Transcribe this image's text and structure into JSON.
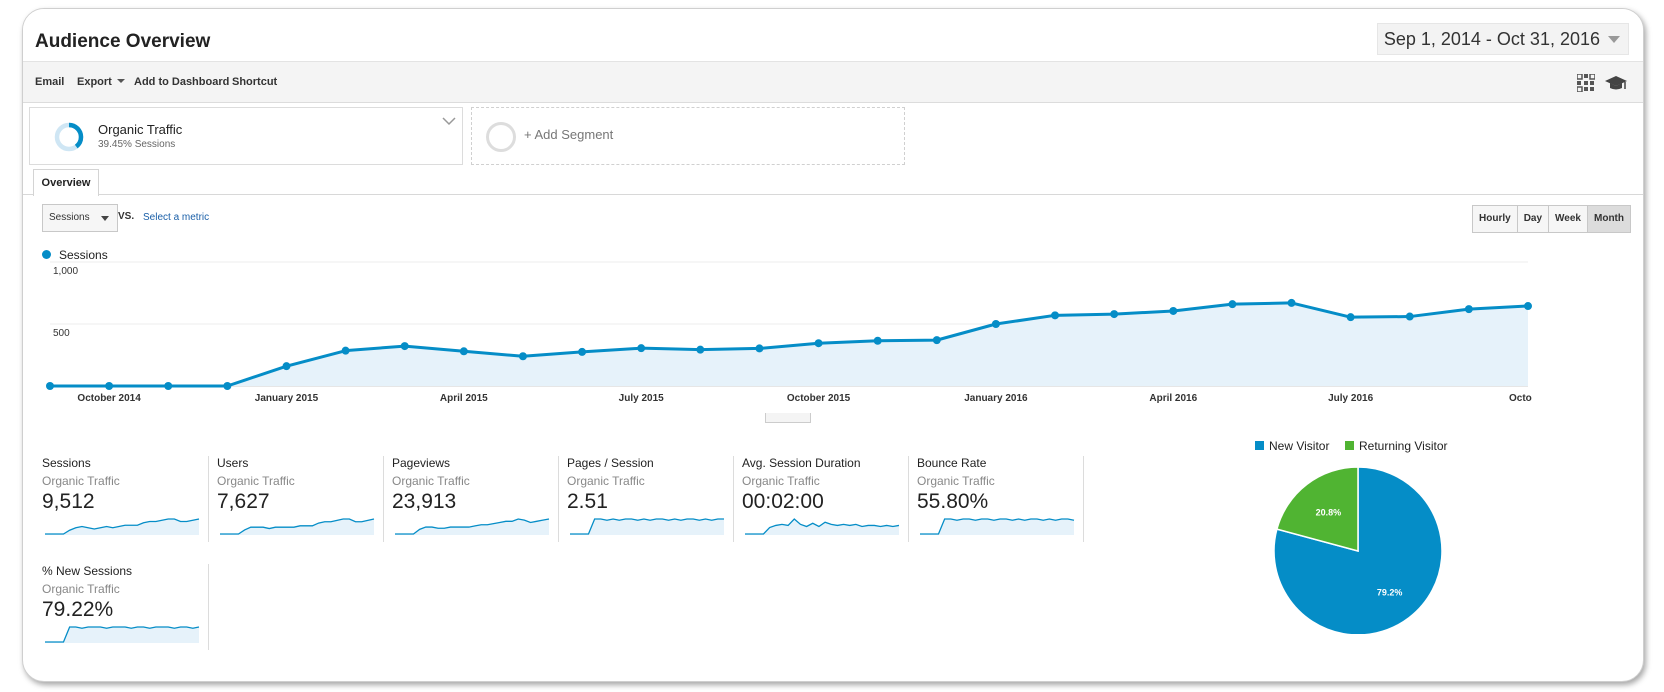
{
  "header": {
    "title": "Audience Overview",
    "date_range": "Sep 1, 2014 - Oct 31, 2016"
  },
  "toolbar": {
    "email": "Email",
    "export": "Export",
    "add_to_dashboard": "Add to Dashboard",
    "shortcut": "Shortcut"
  },
  "segments": {
    "active": {
      "name": "Organic Traffic",
      "detail": "39.45% Sessions"
    },
    "add_label": "+ Add Segment"
  },
  "tabs": {
    "overview": "Overview"
  },
  "controls": {
    "metric": "Sessions",
    "vs": "VS.",
    "select_metric": "Select a metric",
    "periods": [
      "Hourly",
      "Day",
      "Week",
      "Month"
    ],
    "active_period": "Month"
  },
  "colors": {
    "primary": "#058dc7",
    "secondary": "#50b432",
    "fill": "#e6f2fa"
  },
  "chart_data": [
    {
      "type": "area",
      "series": [
        {
          "name": "Sessions",
          "values": [
            0,
            0,
            0,
            0,
            160,
            285,
            322,
            280,
            240,
            275,
            305,
            293,
            303,
            345,
            365,
            370,
            500,
            570,
            580,
            605,
            660,
            670,
            555,
            560,
            620,
            645
          ]
        }
      ],
      "ylim": [
        0,
        1000
      ],
      "y_ticks": [
        "1,000",
        "500"
      ],
      "x_tick_labels": [
        "October 2014",
        "January 2015",
        "April 2015",
        "July 2015",
        "October 2015",
        "January 2016",
        "April 2016",
        "July 2016",
        "Octo"
      ],
      "grid": true
    },
    {
      "type": "pie",
      "labels": [
        "New Visitor",
        "Returning Visitor"
      ],
      "values": [
        79.2,
        20.8
      ],
      "value_labels": [
        "79.2%",
        "20.8%"
      ],
      "legend": "top"
    }
  ],
  "metrics": [
    {
      "name": "Sessions",
      "segment": "Organic Traffic",
      "value": "9,512",
      "spark": [
        0,
        0,
        0,
        0,
        3,
        5,
        6,
        5,
        4,
        5,
        6,
        5,
        6,
        7,
        7,
        7,
        9,
        10,
        10,
        11,
        12,
        12,
        10,
        10,
        11,
        12
      ]
    },
    {
      "name": "Users",
      "segment": "Organic Traffic",
      "value": "7,627",
      "spark": [
        0,
        0,
        0,
        0,
        3,
        5,
        5,
        5,
        4,
        5,
        5,
        5,
        5,
        6,
        6,
        6,
        8,
        9,
        9,
        10,
        11,
        11,
        9,
        9,
        10,
        11
      ]
    },
    {
      "name": "Pageviews",
      "segment": "Organic Traffic",
      "value": "23,913",
      "spark": [
        0,
        0,
        0,
        0,
        4,
        6,
        6,
        5,
        5,
        6,
        6,
        6,
        6,
        7,
        8,
        8,
        9,
        10,
        11,
        11,
        13,
        12,
        10,
        11,
        12,
        13
      ]
    },
    {
      "name": "Pages / Session",
      "segment": "Organic Traffic",
      "value": "2.51",
      "spark": [
        0,
        0,
        0,
        0,
        12,
        12,
        11,
        12,
        11,
        12,
        12,
        11,
        12,
        11,
        12,
        12,
        11,
        12,
        11,
        12,
        12,
        11,
        12,
        11,
        12,
        12
      ]
    },
    {
      "name": "Avg. Session Duration",
      "segment": "Organic Traffic",
      "value": "00:02:00",
      "spark": [
        0,
        0,
        0,
        0,
        6,
        8,
        9,
        8,
        14,
        9,
        7,
        10,
        7,
        11,
        9,
        8,
        9,
        8,
        9,
        7,
        8,
        8,
        7,
        8,
        7,
        8
      ]
    },
    {
      "name": "Bounce Rate",
      "segment": "Organic Traffic",
      "value": "55.80%",
      "spark": [
        0,
        0,
        0,
        0,
        12,
        12,
        11,
        12,
        12,
        11,
        12,
        12,
        11,
        12,
        12,
        11,
        12,
        11,
        12,
        12,
        11,
        12,
        11,
        12,
        12,
        11
      ]
    },
    {
      "name": "% New Sessions",
      "segment": "Organic Traffic",
      "value": "79.22%",
      "spark": [
        0,
        0,
        0,
        0,
        12,
        12,
        11,
        12,
        12,
        12,
        11,
        12,
        12,
        12,
        11,
        12,
        12,
        11,
        12,
        12,
        12,
        11,
        12,
        12,
        11,
        12
      ]
    }
  ]
}
